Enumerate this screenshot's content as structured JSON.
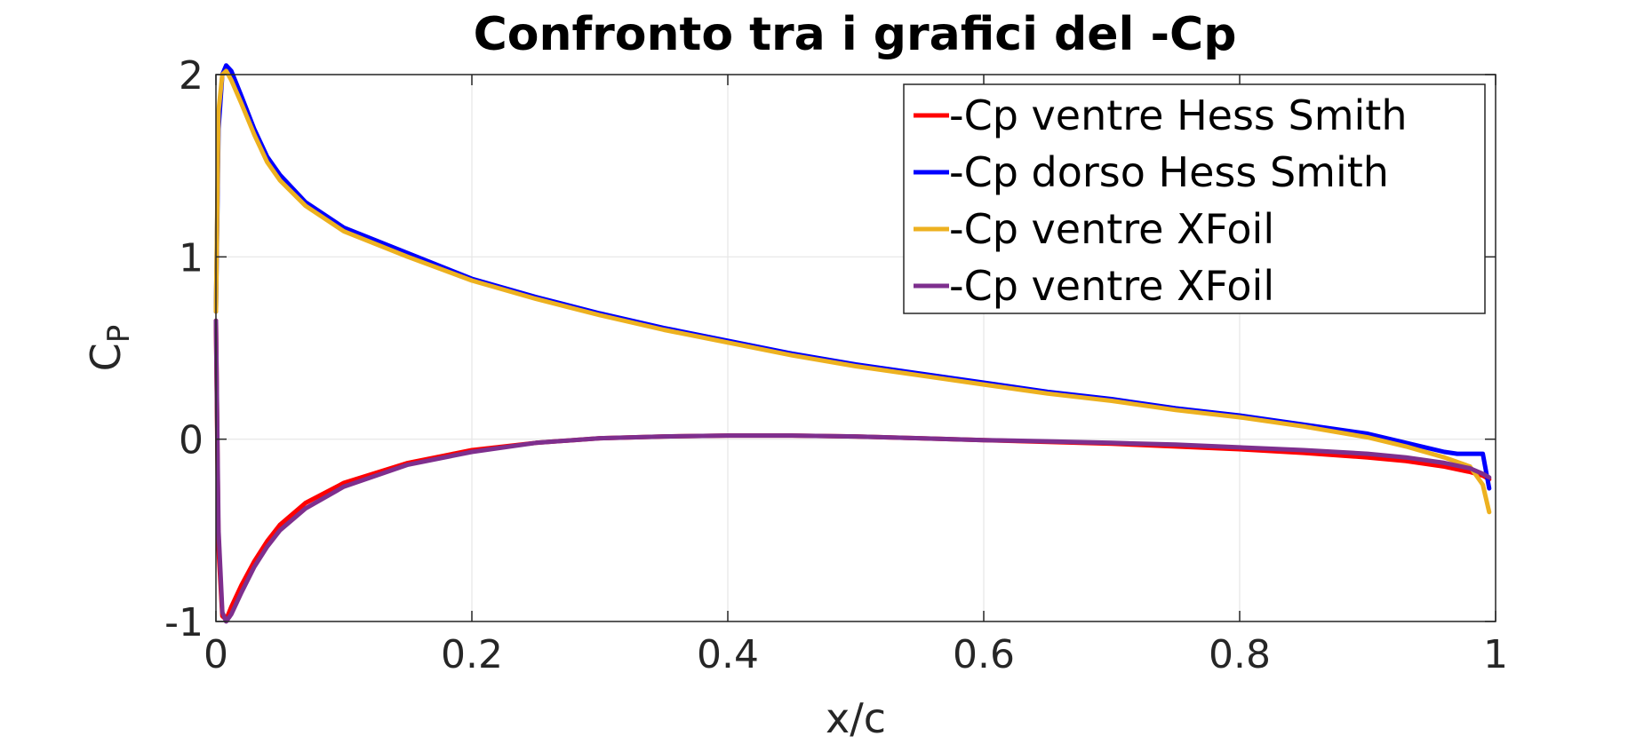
{
  "chart_data": {
    "type": "line",
    "title": "Confronto tra i grafici del -Cp",
    "xlabel": "x/c",
    "ylabel_main": "C",
    "ylabel_sub": "P",
    "xlim": [
      0,
      1
    ],
    "ylim": [
      -1,
      2
    ],
    "xticks": [
      0,
      0.2,
      0.4,
      0.6,
      0.8,
      1
    ],
    "xtick_labels": [
      "0",
      "0.2",
      "0.4",
      "0.6",
      "0.8",
      "1"
    ],
    "yticks": [
      -1,
      0,
      1,
      2
    ],
    "ytick_labels": [
      "-1",
      "0",
      "1",
      "2"
    ],
    "grid": true,
    "legend_position": "top-right",
    "series": [
      {
        "name": "-Cp ventre Hess Smith",
        "color": "#ff0000",
        "x": [
          0,
          0.002,
          0.005,
          0.008,
          0.012,
          0.02,
          0.03,
          0.04,
          0.05,
          0.07,
          0.1,
          0.15,
          0.2,
          0.25,
          0.3,
          0.35,
          0.4,
          0.45,
          0.5,
          0.55,
          0.6,
          0.65,
          0.7,
          0.75,
          0.8,
          0.85,
          0.9,
          0.93,
          0.96,
          0.98,
          0.99,
          0.995
        ],
        "y": [
          0.65,
          -0.6,
          -0.97,
          -0.99,
          -0.92,
          -0.8,
          -0.67,
          -0.56,
          -0.47,
          -0.35,
          -0.24,
          -0.13,
          -0.06,
          -0.02,
          0.005,
          0.015,
          0.02,
          0.02,
          0.015,
          0.005,
          -0.005,
          -0.015,
          -0.025,
          -0.04,
          -0.055,
          -0.075,
          -0.1,
          -0.12,
          -0.15,
          -0.18,
          -0.2,
          -0.22
        ]
      },
      {
        "name": "-Cp dorso Hess Smith",
        "color": "#0000ff",
        "x": [
          0,
          0.002,
          0.005,
          0.008,
          0.012,
          0.02,
          0.03,
          0.04,
          0.05,
          0.07,
          0.1,
          0.15,
          0.2,
          0.25,
          0.3,
          0.35,
          0.4,
          0.45,
          0.5,
          0.55,
          0.6,
          0.65,
          0.7,
          0.75,
          0.8,
          0.85,
          0.9,
          0.93,
          0.96,
          0.97,
          0.98,
          0.99,
          0.995
        ],
        "y": [
          0.7,
          1.7,
          2.0,
          2.05,
          2.02,
          1.88,
          1.7,
          1.55,
          1.45,
          1.3,
          1.16,
          1.02,
          0.88,
          0.78,
          0.69,
          0.61,
          0.54,
          0.47,
          0.41,
          0.36,
          0.31,
          0.26,
          0.22,
          0.17,
          0.13,
          0.08,
          0.03,
          -0.02,
          -0.07,
          -0.08,
          -0.08,
          -0.08,
          -0.27
        ]
      },
      {
        "name": "-Cp ventre XFoil",
        "color": "#edb120",
        "x": [
          0,
          0.002,
          0.005,
          0.008,
          0.012,
          0.02,
          0.03,
          0.04,
          0.05,
          0.07,
          0.1,
          0.15,
          0.2,
          0.25,
          0.3,
          0.35,
          0.4,
          0.45,
          0.5,
          0.55,
          0.6,
          0.65,
          0.7,
          0.75,
          0.8,
          0.85,
          0.9,
          0.93,
          0.96,
          0.98,
          0.99,
          0.995
        ],
        "y": [
          0.7,
          1.8,
          2.0,
          2.02,
          1.97,
          1.84,
          1.67,
          1.52,
          1.42,
          1.28,
          1.14,
          1.0,
          0.87,
          0.77,
          0.68,
          0.6,
          0.53,
          0.46,
          0.4,
          0.35,
          0.3,
          0.25,
          0.21,
          0.16,
          0.12,
          0.07,
          0.01,
          -0.04,
          -0.1,
          -0.15,
          -0.25,
          -0.4
        ]
      },
      {
        "name": "-Cp ventre XFoil",
        "color": "#7e2f8e",
        "x": [
          0,
          0.002,
          0.005,
          0.008,
          0.012,
          0.02,
          0.03,
          0.04,
          0.05,
          0.07,
          0.1,
          0.15,
          0.2,
          0.25,
          0.3,
          0.35,
          0.4,
          0.45,
          0.5,
          0.55,
          0.6,
          0.65,
          0.7,
          0.75,
          0.8,
          0.85,
          0.9,
          0.93,
          0.96,
          0.98,
          0.99,
          0.995
        ],
        "y": [
          0.65,
          -0.5,
          -0.95,
          -1.0,
          -0.96,
          -0.84,
          -0.7,
          -0.59,
          -0.5,
          -0.38,
          -0.26,
          -0.14,
          -0.07,
          -0.02,
          0.005,
          0.015,
          0.02,
          0.02,
          0.015,
          0.005,
          -0.005,
          -0.012,
          -0.02,
          -0.03,
          -0.045,
          -0.06,
          -0.08,
          -0.1,
          -0.13,
          -0.16,
          -0.19,
          -0.21
        ]
      }
    ]
  }
}
